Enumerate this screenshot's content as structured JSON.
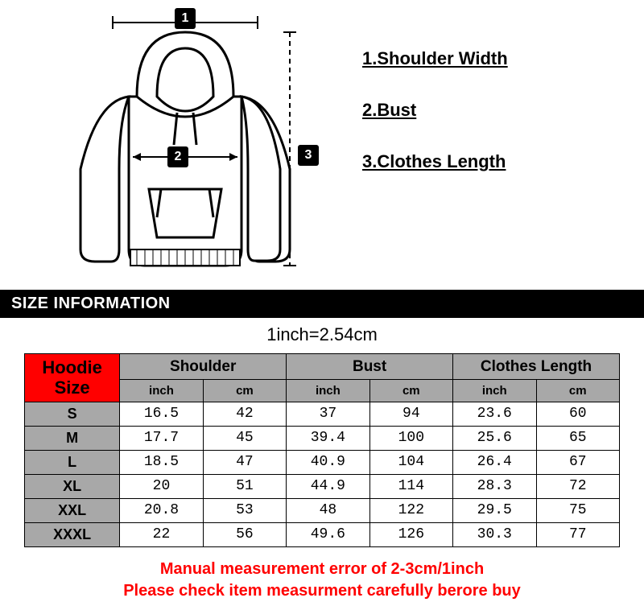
{
  "legend": {
    "items": [
      "1.Shoulder Width",
      "2.Bust",
      "3.Clothes Length"
    ]
  },
  "markers": {
    "m1": "1",
    "m2": "2",
    "m3": "3"
  },
  "size_bar": "SIZE INFORMATION",
  "conversion": "1inch=2.54cm",
  "table": {
    "corner_line1": "Hoodie",
    "corner_line2": "Size",
    "groups": [
      "Shoulder",
      "Bust",
      "Clothes Length"
    ],
    "units": [
      "inch",
      "cm",
      "inch",
      "cm",
      "inch",
      "cm"
    ],
    "sizes": [
      "S",
      "M",
      "L",
      "XL",
      "XXL",
      "XXXL"
    ],
    "rows": [
      [
        "16.5",
        "42",
        "37",
        "94",
        "23.6",
        "60"
      ],
      [
        "17.7",
        "45",
        "39.4",
        "100",
        "25.6",
        "65"
      ],
      [
        "18.5",
        "47",
        "40.9",
        "104",
        "26.4",
        "67"
      ],
      [
        "20",
        "51",
        "44.9",
        "114",
        "28.3",
        "72"
      ],
      [
        "20.8",
        "53",
        "48",
        "122",
        "29.5",
        "75"
      ],
      [
        "22",
        "56",
        "49.6",
        "126",
        "30.3",
        "77"
      ]
    ],
    "header_bg": "#ff0000",
    "group_bg": "#a8a8a8",
    "border_color": "#000000"
  },
  "warning": {
    "line1": "Manual measurement error of 2-3cm/1inch",
    "line2": "Please check item measurment carefully berore buy",
    "color": "#ff0000"
  },
  "colors": {
    "background": "#ffffff",
    "text": "#000000",
    "bar_bg": "#000000",
    "bar_text": "#ffffff"
  }
}
